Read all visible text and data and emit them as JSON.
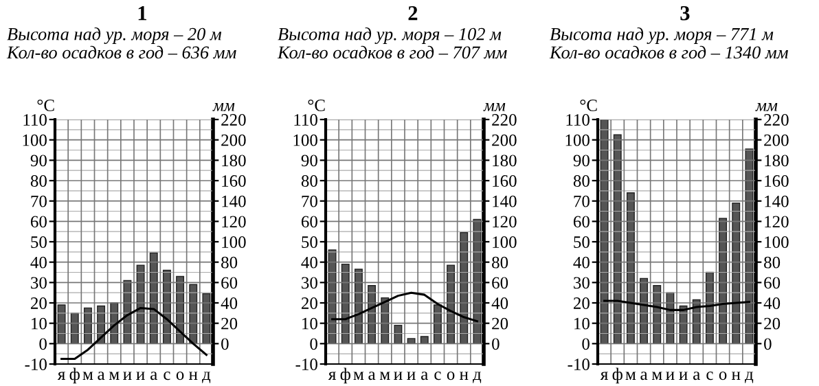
{
  "chart_data": [
    {
      "type": "bar",
      "title": "1",
      "subtitle": "Высота над ур. моря – 20 м\nКол-во осадков в год – 636 мм",
      "ylabel": "°C",
      "y2label": "мм",
      "categories": [
        "я",
        "ф",
        "м",
        "а",
        "м",
        "и",
        "и",
        "а",
        "с",
        "о",
        "н",
        "д"
      ],
      "series": [
        {
          "axis": "y2",
          "color": "#555555",
          "values": [
            38,
            30,
            35,
            37,
            40,
            62,
            77,
            89,
            72,
            66,
            58,
            49
          ]
        },
        {
          "type": "line",
          "axis": "y",
          "color": "#000000",
          "values": [
            -7.5,
            -7.5,
            -3,
            3,
            9,
            14,
            17.5,
            17,
            12,
            6,
            0,
            -5.5
          ]
        }
      ],
      "ylim": [
        -10,
        110
      ],
      "yticks": [
        -10,
        0,
        10,
        20,
        30,
        40,
        50,
        60,
        70,
        80,
        90,
        100,
        110
      ],
      "y2lim": [
        -20,
        220
      ],
      "y2ticks": [
        0,
        20,
        40,
        60,
        80,
        100,
        120,
        140,
        160,
        180,
        200,
        220
      ],
      "grid": true
    },
    {
      "type": "bar",
      "title": "2",
      "subtitle": "Высота над ур. моря – 102 м\nКол-во осадков в год – 707 мм",
      "ylabel": "°C",
      "y2label": "мм",
      "categories": [
        "я",
        "ф",
        "м",
        "а",
        "м",
        "и",
        "и",
        "а",
        "с",
        "о",
        "н",
        "д"
      ],
      "series": [
        {
          "axis": "y2",
          "color": "#555555",
          "values": [
            92,
            78,
            73,
            57,
            45,
            18,
            5,
            7,
            38,
            77,
            109,
            122
          ]
        },
        {
          "type": "line",
          "axis": "y",
          "color": "#000000",
          "values": [
            12,
            12,
            14.5,
            17.5,
            20.5,
            23.5,
            25,
            24,
            19.5,
            16,
            13,
            11
          ]
        }
      ],
      "ylim": [
        -10,
        110
      ],
      "yticks": [
        -10,
        0,
        10,
        20,
        30,
        40,
        50,
        60,
        70,
        80,
        90,
        100,
        110
      ],
      "y2lim": [
        -20,
        220
      ],
      "y2ticks": [
        0,
        20,
        40,
        60,
        80,
        100,
        120,
        140,
        160,
        180,
        200,
        220
      ],
      "grid": true
    },
    {
      "type": "bar",
      "title": "3",
      "subtitle": "Высота над ур. моря – 771 м\nКол-во осадков в год – 1340 мм",
      "ylabel": "°C",
      "y2label": "мм",
      "categories": [
        "я",
        "ф",
        "м",
        "а",
        "м",
        "и",
        "и",
        "а",
        "с",
        "о",
        "н",
        "д"
      ],
      "series": [
        {
          "axis": "y2",
          "color": "#555555",
          "values": [
            220,
            205,
            148,
            64,
            57,
            50,
            37,
            43,
            70,
            123,
            138,
            191
          ]
        },
        {
          "type": "line",
          "axis": "y",
          "color": "#000000",
          "values": [
            21,
            21,
            20,
            19,
            18,
            16.5,
            16.5,
            18,
            18.5,
            19.5,
            20,
            20.5
          ]
        }
      ],
      "ylim": [
        -10,
        110
      ],
      "yticks": [
        -10,
        0,
        10,
        20,
        30,
        40,
        50,
        60,
        70,
        80,
        90,
        100,
        110
      ],
      "y2lim": [
        -20,
        220
      ],
      "y2ticks": [
        0,
        20,
        40,
        60,
        80,
        100,
        120,
        140,
        160,
        180,
        200,
        220
      ],
      "grid": true
    }
  ]
}
